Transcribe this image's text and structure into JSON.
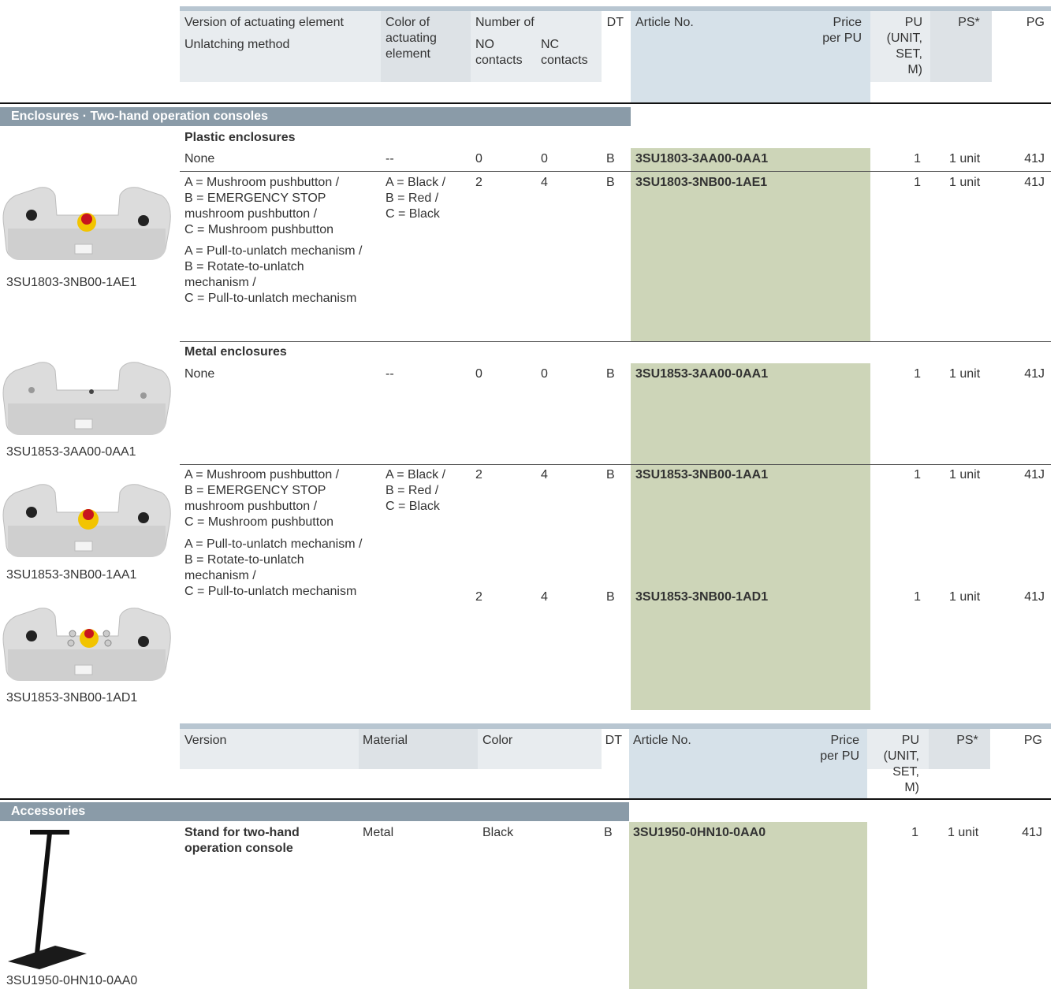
{
  "table1": {
    "header": {
      "version": "Version of actuating element",
      "unlatching": "Unlatching method",
      "color": "Color of actuating element",
      "number_of": "Number of",
      "no": "NO contacts",
      "nc": "NC contacts",
      "dt": "DT",
      "article": "Article No.",
      "price": "Price per PU",
      "pu": "PU (UNIT, SET, M)",
      "ps": "PS*",
      "pg": "PG"
    },
    "section": "Enclosures · Two-hand operation consoles",
    "groups": [
      {
        "title": "Plastic enclosures",
        "rows": [
          {
            "version": "None",
            "color": "--",
            "no": "0",
            "nc": "0",
            "dt": "B",
            "article": "3SU1803-3AA00-0AA1",
            "pu": "1",
            "ps": "1 unit",
            "pg": "41J"
          },
          {
            "version": [
              "A = Mushroom pushbutton /",
              "B = EMERGENCY STOP mushroom pushbutton /",
              "C = Mushroom pushbutton"
            ],
            "unlatching": [
              "A = Pull-to-unlatch mechanism /",
              "B = Rotate-to-unlatch mechanism /",
              "C = Pull-to-unlatch mechanism"
            ],
            "color": [
              "A = Black /",
              "B = Red /",
              "C = Black"
            ],
            "no": "2",
            "nc": "4",
            "dt": "B",
            "article": "3SU1803-3NB00-1AE1",
            "pu": "1",
            "ps": "1 unit",
            "pg": "41J"
          }
        ]
      },
      {
        "title": "Metal enclosures",
        "rows": [
          {
            "version": "None",
            "color": "--",
            "no": "0",
            "nc": "0",
            "dt": "B",
            "article": "3SU1853-3AA00-0AA1",
            "pu": "1",
            "ps": "1 unit",
            "pg": "41J"
          },
          {
            "version": [
              "A = Mushroom pushbutton /",
              "B = EMERGENCY STOP mushroom pushbutton /",
              "C = Mushroom pushbutton"
            ],
            "unlatching": [
              "A = Pull-to-unlatch mechanism /",
              "B = Rotate-to-unlatch mechanism /",
              "C = Pull-to-unlatch mechanism"
            ],
            "color": [
              "A = Black /",
              "B = Red /",
              "C = Black"
            ],
            "no": "2",
            "nc": "4",
            "dt": "B",
            "article": "3SU1853-3NB00-1AA1",
            "pu": "1",
            "ps": "1 unit",
            "pg": "41J"
          },
          {
            "no": "2",
            "nc": "4",
            "dt": "B",
            "article": "3SU1853-3NB00-1AD1",
            "pu": "1",
            "ps": "1 unit",
            "pg": "41J"
          }
        ]
      }
    ]
  },
  "images": [
    "3SU1803-3NB00-1AE1",
    "3SU1853-3AA00-0AA1",
    "3SU1853-3NB00-1AA1",
    "3SU1853-3NB00-1AD1",
    "3SU1950-0HN10-0AA0"
  ],
  "table2": {
    "header": {
      "version": "Version",
      "material": "Material",
      "color": "Color",
      "dt": "DT",
      "article": "Article No.",
      "price": "Price per PU",
      "pu": "PU (UNIT, SET, M)",
      "ps": "PS*",
      "pg": "PG"
    },
    "section": "Accessories",
    "rows": [
      {
        "version": "Stand for two-hand operation console",
        "material": "Metal",
        "color": "Black",
        "dt": "B",
        "article": "3SU1950-0HN10-0AA0",
        "pu": "1",
        "ps": "1 unit",
        "pg": "41J"
      }
    ]
  }
}
